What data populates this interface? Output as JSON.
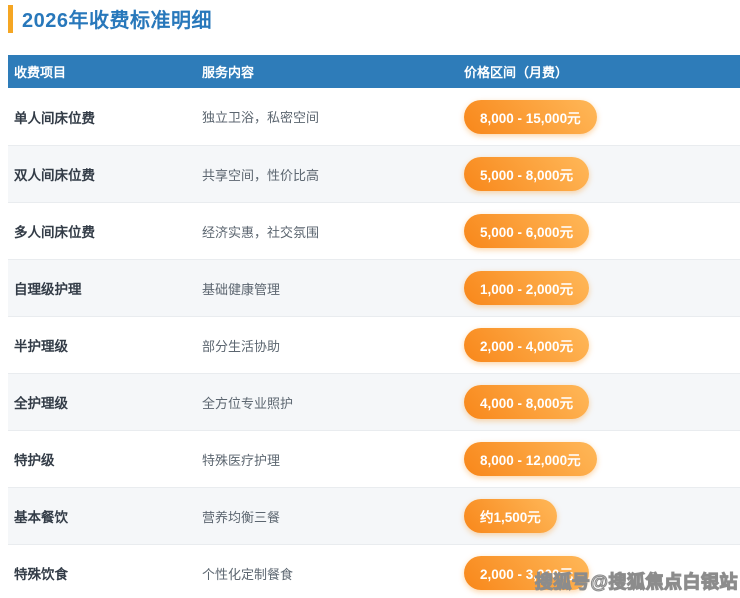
{
  "page": {
    "title": "2026年收费标准明细"
  },
  "colors": {
    "title_text": "#2878BB",
    "title_accent": "#F5A623",
    "header_bg": "#2E7CB9",
    "row_stripe": "#F5F7F9",
    "divider": "#E9ECEF",
    "pill_gradient_start": "#F8871A",
    "pill_gradient_end": "#FFB859"
  },
  "table": {
    "columns": [
      "收费项目",
      "服务内容",
      "价格区间（月费）"
    ],
    "rows": [
      {
        "item": "单人间床位费",
        "service": "独立卫浴，私密空间",
        "price": "8,000 - 15,000元"
      },
      {
        "item": "双人间床位费",
        "service": "共享空间，性价比高",
        "price": "5,000 - 8,000元"
      },
      {
        "item": "多人间床位费",
        "service": "经济实惠，社交氛围",
        "price": "5,000 - 6,000元"
      },
      {
        "item": "自理级护理",
        "service": "基础健康管理",
        "price": "1,000 - 2,000元"
      },
      {
        "item": "半护理级",
        "service": "部分生活协助",
        "price": "2,000 - 4,000元"
      },
      {
        "item": "全护理级",
        "service": "全方位专业照护",
        "price": "4,000 - 8,000元"
      },
      {
        "item": "特护级",
        "service": "特殊医疗护理",
        "price": "8,000 - 12,000元"
      },
      {
        "item": "基本餐饮",
        "service": "营养均衡三餐",
        "price": "约1,500元"
      },
      {
        "item": "特殊饮食",
        "service": "个性化定制餐食",
        "price": "2,000 - 3,000元"
      }
    ]
  },
  "watermark": "搜狐号@搜狐焦点白银站"
}
